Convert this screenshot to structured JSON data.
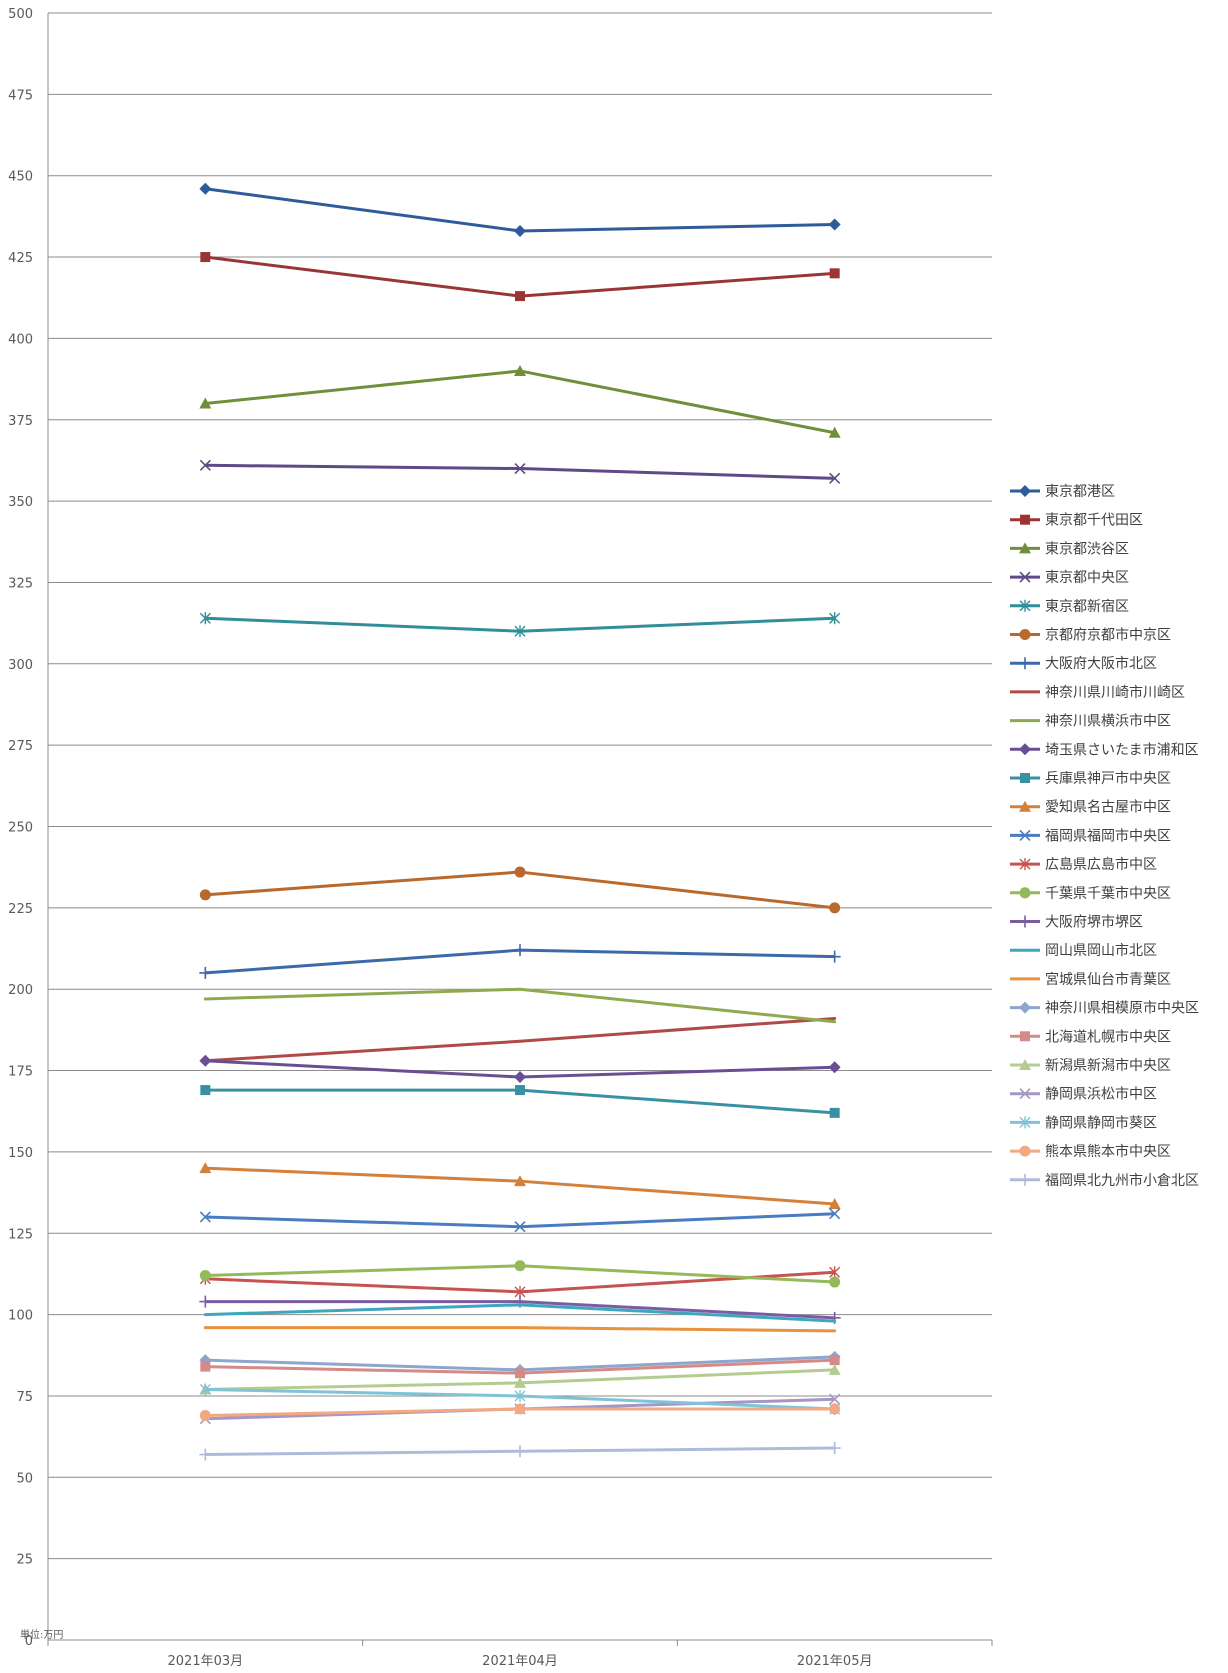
{
  "chart_data": {
    "type": "line",
    "unit_label": "単位:万円",
    "categories": [
      "2021年03月",
      "2021年04月",
      "2021年05月"
    ],
    "ylim": [
      0,
      500
    ],
    "y_ticks": [
      0,
      25,
      50,
      75,
      100,
      125,
      150,
      175,
      200,
      225,
      250,
      275,
      300,
      325,
      350,
      375,
      400,
      425,
      450,
      475,
      500
    ],
    "grid": true,
    "legend_position": "right",
    "series": [
      {
        "name": "東京都港区",
        "values": [
          446,
          433,
          435
        ],
        "color": "#2E5B99",
        "marker": "diamond"
      },
      {
        "name": "東京都千代田区",
        "values": [
          425,
          413,
          420
        ],
        "color": "#9B3535",
        "marker": "square"
      },
      {
        "name": "東京都渋谷区",
        "values": [
          380,
          390,
          371
        ],
        "color": "#6F8F3A",
        "marker": "triangle"
      },
      {
        "name": "東京都中央区",
        "values": [
          361,
          360,
          357
        ],
        "color": "#5E4A86",
        "marker": "x"
      },
      {
        "name": "東京都新宿区",
        "values": [
          314,
          310,
          314
        ],
        "color": "#2F8E98",
        "marker": "star"
      },
      {
        "name": "京都府京都市中京区",
        "values": [
          229,
          236,
          225
        ],
        "color": "#B8692D",
        "marker": "circle"
      },
      {
        "name": "大阪府大阪市北区",
        "values": [
          205,
          212,
          210
        ],
        "color": "#3B6AA8",
        "marker": "plus"
      },
      {
        "name": "神奈川県川崎市川崎区",
        "values": [
          178,
          184,
          191
        ],
        "color": "#B04A48",
        "marker": "none"
      },
      {
        "name": "神奈川県横浜市中区",
        "values": [
          197,
          200,
          190
        ],
        "color": "#8FAA4E",
        "marker": "none"
      },
      {
        "name": "埼玉県さいたま市浦和区",
        "values": [
          178,
          173,
          176
        ],
        "color": "#6A4E92",
        "marker": "diamond"
      },
      {
        "name": "兵庫県神戸市中央区",
        "values": [
          169,
          169,
          162
        ],
        "color": "#3791A3",
        "marker": "square"
      },
      {
        "name": "愛知県名古屋市中区",
        "values": [
          145,
          141,
          134
        ],
        "color": "#D4803A",
        "marker": "triangle"
      },
      {
        "name": "福岡県福岡市中央区",
        "values": [
          130,
          127,
          131
        ],
        "color": "#4A7CBF",
        "marker": "x"
      },
      {
        "name": "広島県広島市中区",
        "values": [
          111,
          107,
          113
        ],
        "color": "#C5534F",
        "marker": "star"
      },
      {
        "name": "千葉県千葉市中央区",
        "values": [
          112,
          115,
          110
        ],
        "color": "#94B95A",
        "marker": "circle"
      },
      {
        "name": "大阪府堺市堺区",
        "values": [
          104,
          104,
          99
        ],
        "color": "#7A5CA3",
        "marker": "plus"
      },
      {
        "name": "岡山県岡山市北区",
        "values": [
          100,
          103,
          98
        ],
        "color": "#3FA6BF",
        "marker": "none"
      },
      {
        "name": "宮城県仙台市青葉区",
        "values": [
          96,
          96,
          95
        ],
        "color": "#E8913E",
        "marker": "none"
      },
      {
        "name": "神奈川県相模原市中央区",
        "values": [
          86,
          83,
          87
        ],
        "color": "#8EA5CC",
        "marker": "diamond"
      },
      {
        "name": "北海道札幌市中央区",
        "values": [
          84,
          82,
          86
        ],
        "color": "#D38A88",
        "marker": "square"
      },
      {
        "name": "新潟県新潟市中央区",
        "values": [
          77,
          79,
          83
        ],
        "color": "#B4CC90",
        "marker": "triangle"
      },
      {
        "name": "静岡県浜松市中区",
        "values": [
          68,
          71,
          74
        ],
        "color": "#A597C3",
        "marker": "x"
      },
      {
        "name": "静岡県静岡市葵区",
        "values": [
          77,
          75,
          71
        ],
        "color": "#7FC3D6",
        "marker": "star"
      },
      {
        "name": "熊本県熊本市中央区",
        "values": [
          69,
          71,
          71
        ],
        "color": "#F2A882",
        "marker": "circle"
      },
      {
        "name": "福岡県北九州市小倉北区",
        "values": [
          57,
          58,
          59
        ],
        "color": "#AEBCDB",
        "marker": "plus"
      }
    ]
  }
}
